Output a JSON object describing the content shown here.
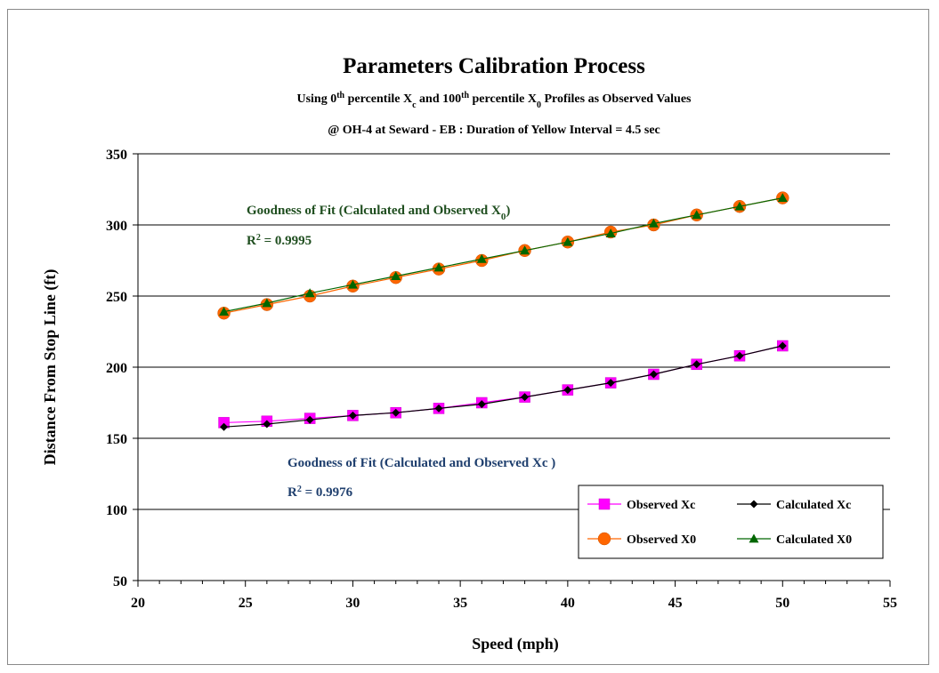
{
  "chart_data": {
    "type": "line",
    "title": "Parameters Calibration Process",
    "subtitle_line1": {
      "prefix": "Using 0",
      "sup1": "th",
      "mid1": " percentile X",
      "sub1": "c",
      "mid2": " and 100",
      "sup2": "th",
      "mid3": " percentile X",
      "sub2": "0",
      "suffix": " Profiles as Observed Values"
    },
    "subtitle_line2": "@ OH-4 at Seward - EB : Duration of Yellow Interval = 4.5 sec",
    "xlabel": "Speed (mph)",
    "ylabel": "Distance From Stop Line (ft)",
    "xlim": [
      20,
      55
    ],
    "ylim": [
      50,
      350
    ],
    "xticks": [
      20,
      25,
      30,
      35,
      40,
      45,
      50,
      55
    ],
    "yticks": [
      50,
      100,
      150,
      200,
      250,
      300,
      350
    ],
    "grid": "horizontal major gridlines",
    "legend_position": "bottom-right",
    "x": [
      24,
      26,
      28,
      30,
      32,
      34,
      36,
      38,
      40,
      42,
      44,
      46,
      48,
      50
    ],
    "series": [
      {
        "name": "Observed Xc",
        "marker": "square",
        "color": "#ff00ff",
        "values": [
          161,
          162,
          164,
          166,
          168,
          171,
          175,
          179,
          184,
          189,
          195,
          202,
          208,
          215
        ]
      },
      {
        "name": "Calculated Xc",
        "marker": "diamond",
        "color": "#000000",
        "values": [
          158,
          160,
          163,
          166,
          168,
          171,
          174,
          179,
          184,
          189,
          195,
          202,
          208,
          215
        ]
      },
      {
        "name": "Observed X0",
        "marker": "circle",
        "color": "#ff6600",
        "values": [
          238,
          244,
          250,
          257,
          263,
          269,
          275,
          282,
          288,
          295,
          300,
          307,
          313,
          319
        ]
      },
      {
        "name": "Calculated X0",
        "marker": "triangle",
        "color": "#006600",
        "values": [
          239,
          245,
          252,
          258,
          264,
          270,
          276,
          282,
          288,
          294,
          301,
          307,
          313,
          319
        ]
      }
    ],
    "annotations": {
      "x0_fit_label": "Goodness of Fit (Calculated  and Observed X",
      "x0_fit_sub": "0",
      "x0_fit_close": ")",
      "x0_r2": "R",
      "x0_r2_sup": "2",
      "x0_r2_val": " = 0.9995",
      "x0_color": "#1f4e1f",
      "xc_fit_label": "Goodness of Fit (Calculated and Observed Xc )",
      "xc_r2": "R",
      "xc_r2_sup": "2",
      "xc_r2_val": " = 0.9976",
      "xc_color": "#1f3f6e"
    }
  }
}
